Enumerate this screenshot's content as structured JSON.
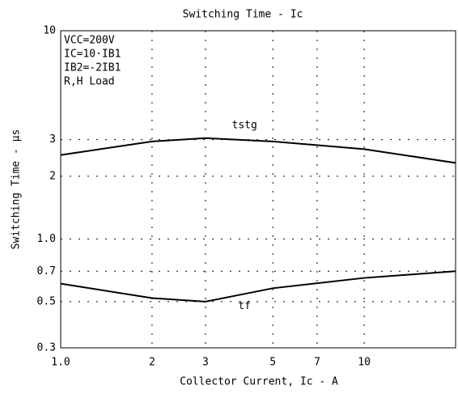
{
  "chart_data": {
    "type": "line",
    "title": "Switching Time - Ic",
    "x_label": "Collector Current, Ic - A",
    "y_label": "Switching Time - μs",
    "annotations": [
      "VCC=200V",
      "IC=10·IB1",
      "IB2=-2IB1",
      "R,H Load"
    ],
    "x": [
      1,
      2,
      3,
      5,
      10,
      20
    ],
    "series": [
      {
        "name": "tstg",
        "color": "#000000",
        "values": [
          2.53,
          2.94,
          3.05,
          2.94,
          2.7,
          2.32
        ]
      },
      {
        "name": "tf",
        "color": "#000000",
        "values": [
          0.61,
          0.52,
          0.5,
          0.58,
          0.65,
          0.7
        ]
      }
    ],
    "xlim": [
      1,
      20
    ],
    "xticks": [
      {
        "value": 1,
        "label": "1.0"
      },
      2,
      3,
      5,
      7,
      10
    ],
    "ylim": [
      0.3,
      10
    ],
    "yticks": [
      10,
      3,
      2,
      {
        "value": 1,
        "label": "1.0"
      },
      0.7,
      0.5,
      0.3
    ],
    "log_x": true,
    "log_y": true,
    "grid": true
  }
}
